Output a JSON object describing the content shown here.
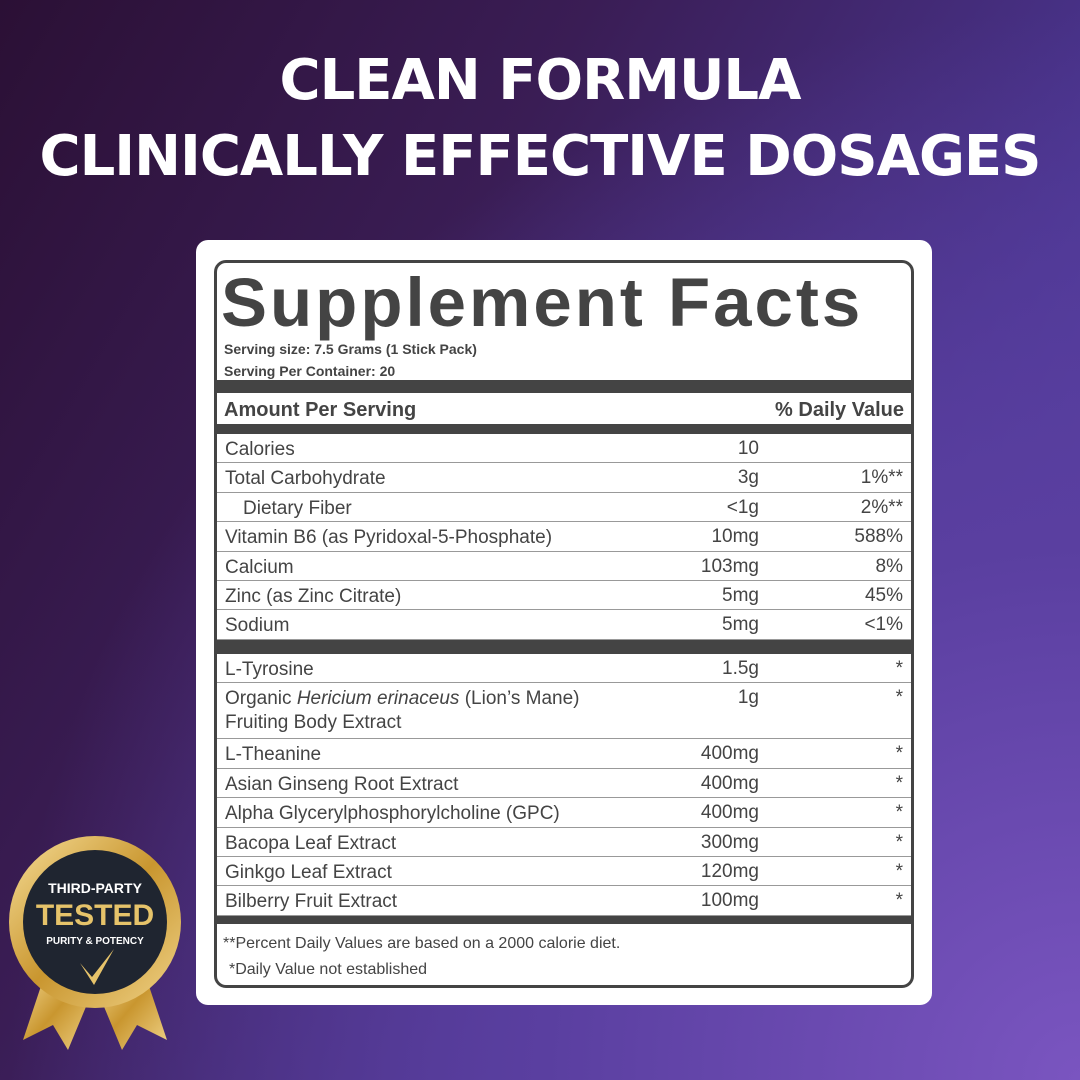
{
  "headline": [
    "CLEAN FORMULA",
    "CLINICALLY EFFECTIVE DOSAGES"
  ],
  "label": {
    "title": "Supplement Facts",
    "serving_size": "Serving size: 7.5 Grams (1 Stick Pack)",
    "servings_per_container": "Serving Per Container: 20",
    "col_amount": "Amount Per Serving",
    "col_dv": "% Daily Value",
    "nutrients": [
      {
        "name": "Calories",
        "amount": "10",
        "dv": ""
      },
      {
        "name": "Total Carbohydrate",
        "amount": "3g",
        "dv": "1%**"
      },
      {
        "name": "Dietary Fiber",
        "amount": "<1g",
        "dv": "2%**"
      },
      {
        "name": "Vitamin B6 (as Pyridoxal-5-Phosphate)",
        "amount": "10mg",
        "dv": "588%"
      },
      {
        "name": "Calcium",
        "amount": "103mg",
        "dv": "8%"
      },
      {
        "name": "Zinc (as Zinc Citrate)",
        "amount": "5mg",
        "dv": "45%"
      },
      {
        "name": "Sodium",
        "amount": "5mg",
        "dv": "<1%"
      }
    ],
    "ingredients": [
      {
        "name": "L-Tyrosine",
        "amount": "1.5g",
        "dv": "*"
      },
      {
        "name_prefix": "Organic ",
        "name_italic": "Hericium erinaceus",
        "name_suffix": " (Lion’s Mane)",
        "name_line2": "Fruiting Body Extract",
        "amount": "1g",
        "dv": "*"
      },
      {
        "name": "L-Theanine",
        "amount": "400mg",
        "dv": "*"
      },
      {
        "name": "Asian Ginseng Root Extract",
        "amount": "400mg",
        "dv": "*"
      },
      {
        "name": "Alpha Glycerylphosphorylcholine (GPC)",
        "amount": "400mg",
        "dv": "*"
      },
      {
        "name": "Bacopa Leaf Extract",
        "amount": "300mg",
        "dv": "*"
      },
      {
        "name": "Ginkgo Leaf Extract",
        "amount": "120mg",
        "dv": "*"
      },
      {
        "name": "Bilberry Fruit Extract",
        "amount": "100mg",
        "dv": "*"
      }
    ],
    "footnote1": "**Percent Daily Values are based on a 2000 calorie diet.",
    "footnote2": "*Daily Value not established"
  },
  "badge": {
    "line1": "THIRD-PARTY",
    "line2": "TESTED",
    "line3": "PURITY & POTENCY"
  },
  "colors": {
    "label_ink": "#444444",
    "badge_gold": "#d9b35a",
    "badge_dark": "#1f2530"
  }
}
